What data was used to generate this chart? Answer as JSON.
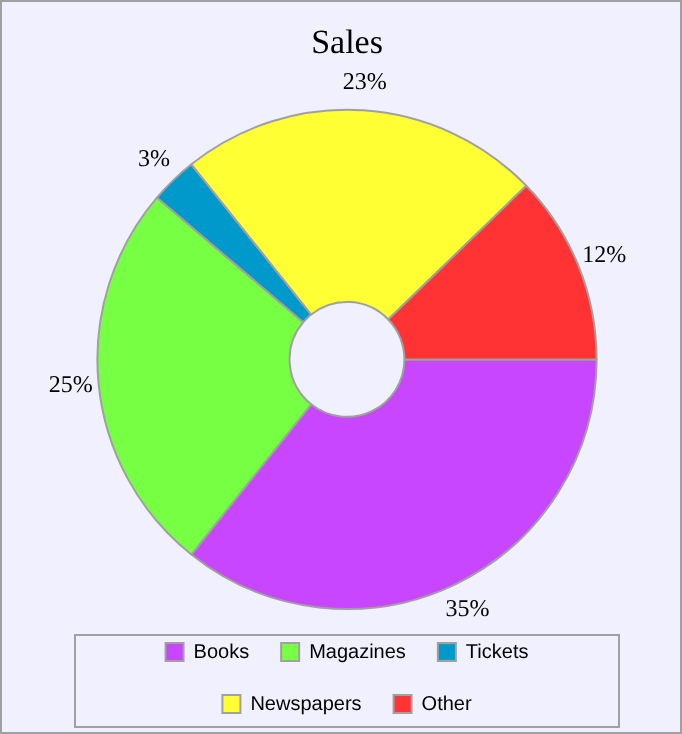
{
  "chart_data": {
    "type": "donut",
    "title": "Sales",
    "categories": [
      "Books",
      "Magazines",
      "Tickets",
      "Newspapers",
      "Other"
    ],
    "values": [
      35,
      25,
      3,
      23,
      12
    ],
    "colors": [
      "#c846ff",
      "#77ff44",
      "#0099cc",
      "#ffff33",
      "#ff3333"
    ],
    "value_labels": [
      "35%",
      "25%",
      "3%",
      "23%",
      "12%"
    ],
    "legend": "bottom"
  }
}
